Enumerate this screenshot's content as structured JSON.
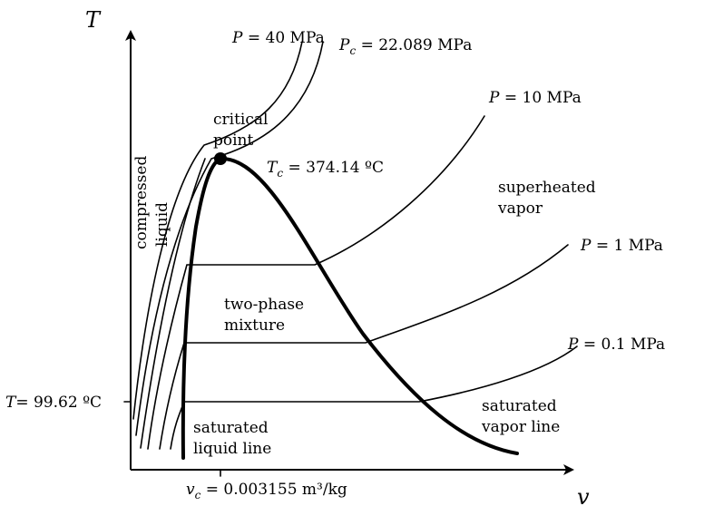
{
  "axes": {
    "y_symbol": "T",
    "x_symbol": "v",
    "y_tick_prefix": "T",
    "y_tick_value": "= 99.62 ºC",
    "x_tick_prefix": "v",
    "x_tick_sub": "c",
    "x_tick_value": "= 0.003155 m³/kg"
  },
  "isobars": {
    "p40": "= 40 MPa",
    "pc_sub": "c",
    "pc": "= 22.089 MPa",
    "p10": "= 10 MPa",
    "p1": "= 1 MPa",
    "p01": "= 0.1 MPa",
    "p_symbol": "P"
  },
  "critical": {
    "line1": "critical",
    "line2": "point",
    "tc_symbol": "T",
    "tc_sub": "c",
    "tc_value": "= 374.14 ºC"
  },
  "regions": {
    "compressed": "compressed",
    "liquid": "liquid",
    "superheated": "superheated",
    "vapor": "vapor",
    "two_phase": "two-phase",
    "mixture": "mixture",
    "sat_liquid_1": "saturated",
    "sat_liquid_2": "liquid line",
    "sat_vapor_1": "saturated",
    "sat_vapor_2": "vapor line"
  }
}
